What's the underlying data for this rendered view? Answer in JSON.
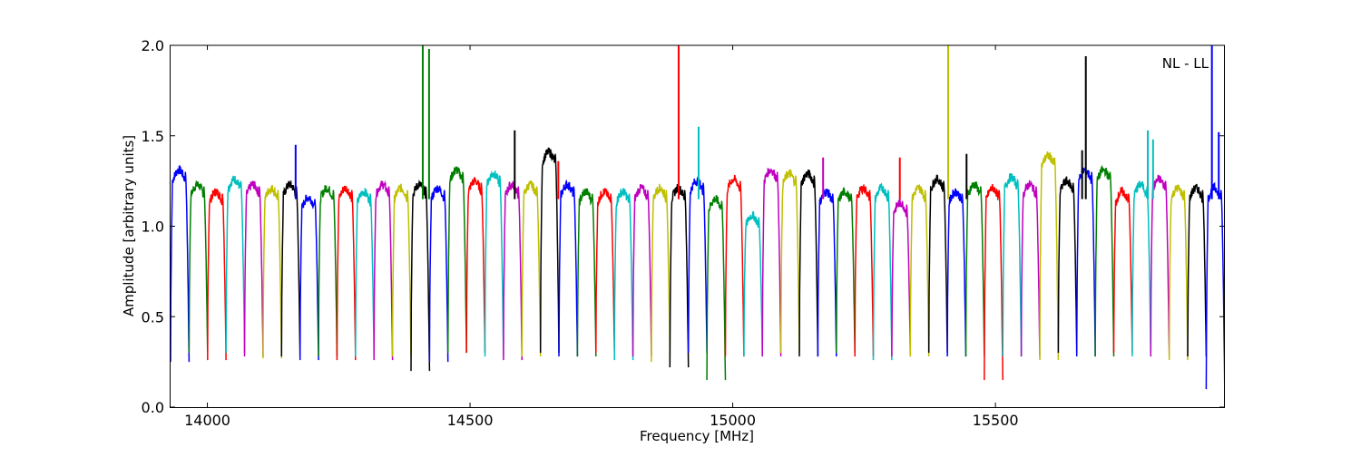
{
  "chart_data": {
    "type": "line",
    "title": "",
    "xlabel": "Frequency [MHz]",
    "ylabel": "Amplitude [arbitrary units]",
    "xlim": [
      13930,
      15935
    ],
    "ylim": [
      0.0,
      2.0
    ],
    "xticks": [
      14000,
      14500,
      15000,
      15500
    ],
    "yticks": [
      0.0,
      0.5,
      1.0,
      1.5,
      2.0
    ],
    "xtick_labels": [
      "14000",
      "14500",
      "15000",
      "15500"
    ],
    "ytick_labels": [
      "0.0",
      "0.5",
      "1.0",
      "1.5",
      "2.0"
    ],
    "annotation": "NL - LL",
    "annotation_position": "top-right",
    "grid": false,
    "legend": "none",
    "subbands": {
      "start_mhz": 13930,
      "width_mhz": 35.2,
      "count": 57,
      "colors": [
        "#0000ff",
        "#007f00",
        "#ff0000",
        "#00bfbf",
        "#bf00bf",
        "#bfbf00",
        "#000000"
      ],
      "plateau_levels": [
        1.3,
        1.22,
        1.18,
        1.25,
        1.22,
        1.2,
        1.22,
        1.15,
        1.2,
        1.2,
        1.18,
        1.22,
        1.2,
        1.22,
        1.2,
        1.3,
        1.24,
        1.28,
        1.22,
        1.22,
        1.4,
        1.22,
        1.18,
        1.18,
        1.18,
        1.2,
        1.2,
        1.2,
        1.24,
        1.14,
        1.25,
        1.05,
        1.3,
        1.28,
        1.28,
        1.18,
        1.18,
        1.2,
        1.2,
        1.12,
        1.2,
        1.25,
        1.18,
        1.22,
        1.2,
        1.26,
        1.22,
        1.38,
        1.24,
        1.3,
        1.3,
        1.18,
        1.22,
        1.25,
        1.2,
        1.2,
        1.2
      ],
      "dip_levels": [
        0.25,
        0.3,
        0.26,
        0.3,
        0.28,
        0.27,
        0.28,
        0.26,
        0.28,
        0.26,
        0.28,
        0.26,
        0.28,
        0.2,
        0.25,
        0.3,
        0.3,
        0.28,
        0.26,
        0.28,
        0.3,
        0.28,
        0.28,
        0.3,
        0.26,
        0.28,
        0.25,
        0.22,
        0.3,
        0.15,
        0.28,
        0.28,
        0.28,
        0.3,
        0.28,
        0.28,
        0.3,
        0.28,
        0.26,
        0.28,
        0.28,
        0.3,
        0.28,
        0.28,
        0.15,
        0.28,
        0.28,
        0.26,
        0.3,
        0.28,
        0.28,
        0.3,
        0.28,
        0.28,
        0.26,
        0.28,
        0.1
      ]
    },
    "spikes": [
      {
        "x": 14168,
        "y": 1.45,
        "series_color": "#0000ff"
      },
      {
        "x": 14410,
        "y": 2.0,
        "series_color": "#007f00"
      },
      {
        "x": 14422,
        "y": 1.98,
        "series_color": "#007f00"
      },
      {
        "x": 14585,
        "y": 1.53,
        "series_color": "#000000"
      },
      {
        "x": 14668,
        "y": 1.36,
        "series_color": "#ff0000"
      },
      {
        "x": 14897,
        "y": 2.0,
        "series_color": "#ff0000"
      },
      {
        "x": 14935,
        "y": 1.55,
        "series_color": "#00bfbf"
      },
      {
        "x": 15172,
        "y": 1.38,
        "series_color": "#bf00bf"
      },
      {
        "x": 15318,
        "y": 1.38,
        "series_color": "#ff0000"
      },
      {
        "x": 15410,
        "y": 2.0,
        "series_color": "#bfbf00"
      },
      {
        "x": 15445,
        "y": 1.4,
        "series_color": "#000000"
      },
      {
        "x": 15665,
        "y": 1.42,
        "series_color": "#000000"
      },
      {
        "x": 15672,
        "y": 1.94,
        "series_color": "#000000"
      },
      {
        "x": 15790,
        "y": 1.53,
        "series_color": "#00bfbf"
      },
      {
        "x": 15800,
        "y": 1.48,
        "series_color": "#00bfbf"
      },
      {
        "x": 15912,
        "y": 2.0,
        "series_color": "#0000ff"
      },
      {
        "x": 15925,
        "y": 1.52,
        "series_color": "#0000ff"
      }
    ]
  }
}
